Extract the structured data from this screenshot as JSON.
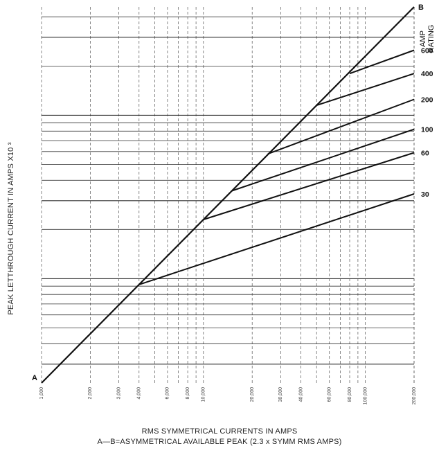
{
  "chart_data": {
    "type": "line",
    "xlabel": "RMS SYMMETRICAL CURRENTS IN AMPS",
    "xnote": "A—B=ASYMMETRICAL AVAILABLE PEAK (2.3 x SYMM RMS AMPS)",
    "ylabel": "PEAK LETTHROUGH CURRENT IN AMPS X10 ³",
    "legend_title": "AMP RATING",
    "xscale": "log",
    "yscale": "log",
    "xlim": [
      1000,
      200000
    ],
    "ylim": [
      2.3,
      460
    ],
    "grid": true,
    "x_tick_labels": [
      "1,000",
      "2,000",
      "3,000",
      "4,000",
      "6,000",
      "8,000",
      "10,000",
      "20,000",
      "30,000",
      "40,000",
      "60,000",
      "80,000",
      "100,000",
      "200,000"
    ],
    "reference_line": {
      "name_start": "A",
      "name_end": "B",
      "x": [
        1000,
        200000
      ],
      "y": [
        2.3,
        460
      ]
    },
    "series": [
      {
        "name": "600",
        "x": [
          80000,
          200000
        ],
        "y": [
          180,
          250
        ]
      },
      {
        "name": "400",
        "x": [
          50000,
          200000
        ],
        "y": [
          115,
          180
        ]
      },
      {
        "name": "200",
        "x": [
          25000,
          200000
        ],
        "y": [
          58,
          125
        ]
      },
      {
        "name": "100",
        "x": [
          15000,
          200000
        ],
        "y": [
          34.5,
          82
        ]
      },
      {
        "name": "60",
        "x": [
          10000,
          200000
        ],
        "y": [
          23,
          59
        ]
      },
      {
        "name": "30",
        "x": [
          4000,
          200000
        ],
        "y": [
          9.2,
          33
        ]
      }
    ]
  }
}
